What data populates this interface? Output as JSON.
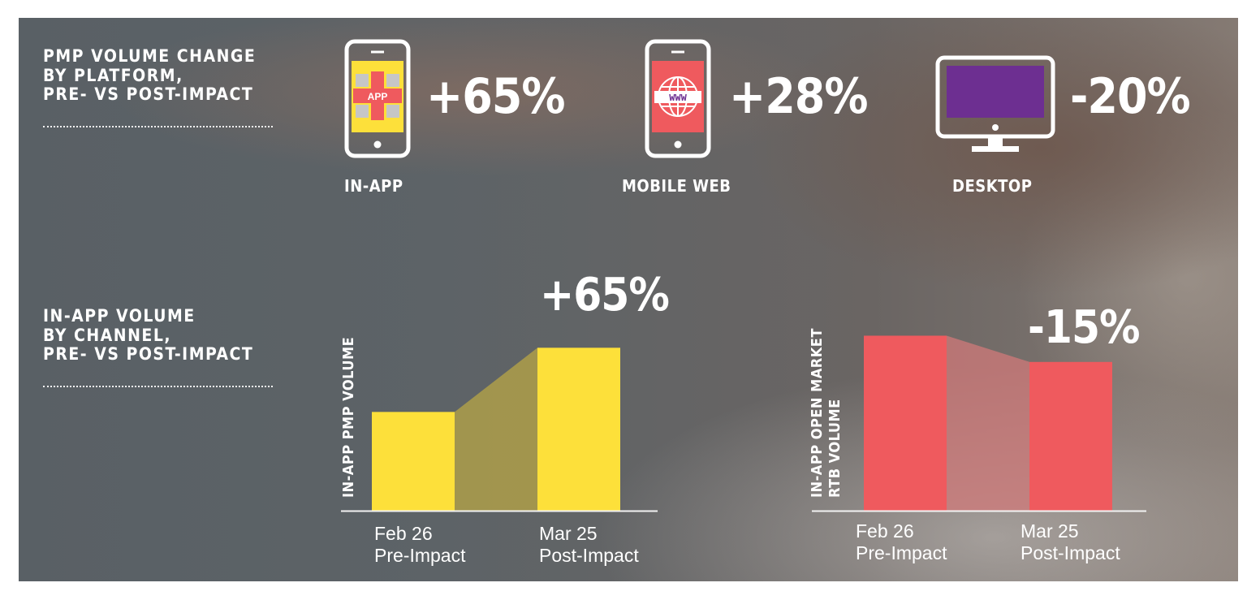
{
  "section1": {
    "title_lines": [
      "PMP VOLUME CHANGE",
      "BY PLATFORM,",
      "PRE- VS POST-IMPACT"
    ]
  },
  "platforms": [
    {
      "name": "IN-APP",
      "change": "+65%",
      "icon": "phone-app-icon",
      "icon_text": "APP",
      "color": "#fde03a"
    },
    {
      "name": "MOBILE WEB",
      "change": "+28%",
      "icon": "phone-www-icon",
      "icon_text": "WWW",
      "color": "#ef5a5e"
    },
    {
      "name": "DESKTOP",
      "change": "-20%",
      "icon": "desktop-monitor-icon",
      "icon_text": "",
      "color": "#6d2f91"
    }
  ],
  "section2": {
    "title_lines": [
      "IN-APP VOLUME",
      "BY CHANNEL,",
      "PRE- VS POST-IMPACT"
    ]
  },
  "chart_data": [
    {
      "type": "bar",
      "ylabel_lines": [
        "IN-APP PMP VOLUME"
      ],
      "categories": [
        [
          "Feb 26",
          "Pre-Impact"
        ],
        [
          "Mar 25",
          "Post-Impact"
        ]
      ],
      "values": [
        100,
        165
      ],
      "ylim": [
        0,
        185
      ],
      "change_label": "+65%",
      "color": "#fde03a",
      "connector_color": "#b8a646",
      "axis_ticks": false,
      "grid": false
    },
    {
      "type": "bar",
      "ylabel_lines": [
        "IN-APP OPEN MARKET",
        "RTB VOLUME"
      ],
      "categories": [
        [
          "Feb 26",
          "Pre-Impact"
        ],
        [
          "Mar 25",
          "Post-Impact"
        ]
      ],
      "values": [
        100,
        85
      ],
      "ylim": [
        0,
        103
      ],
      "change_label": "-15%",
      "color": "#ef5a5e",
      "connector_color": "#d07a7a",
      "axis_ticks": false,
      "grid": false
    }
  ]
}
